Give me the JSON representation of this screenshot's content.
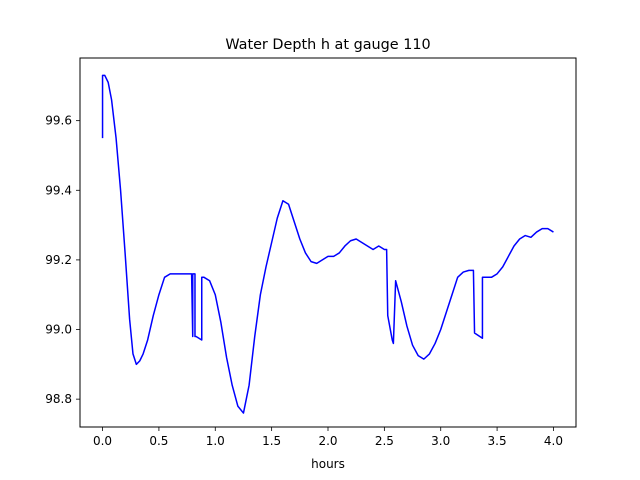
{
  "chart_data": {
    "type": "line",
    "title": "Water Depth h at gauge 110",
    "xlabel": "hours",
    "ylabel": "",
    "xlim": [
      -0.2,
      4.2
    ],
    "ylim": [
      98.72,
      99.78
    ],
    "xticks": [
      0.0,
      0.5,
      1.0,
      1.5,
      2.0,
      2.5,
      3.0,
      3.5,
      4.0
    ],
    "xtick_labels": [
      "0.0",
      "0.5",
      "1.0",
      "1.5",
      "2.0",
      "2.5",
      "3.0",
      "3.5",
      "4.0"
    ],
    "yticks": [
      98.8,
      99.0,
      99.2,
      99.4,
      99.6
    ],
    "ytick_labels": [
      "98.8",
      "99.0",
      "99.2",
      "99.4",
      "99.6"
    ],
    "grid": false,
    "series": [
      {
        "color": "#0000ff",
        "x": [
          0.0,
          0.0,
          0.02,
          0.05,
          0.08,
          0.12,
          0.16,
          0.2,
          0.24,
          0.27,
          0.3,
          0.33,
          0.36,
          0.4,
          0.45,
          0.5,
          0.55,
          0.6,
          0.65,
          0.7,
          0.75,
          0.79,
          0.8,
          0.8,
          0.82,
          0.82,
          0.83,
          0.88,
          0.88,
          0.9,
          0.95,
          1.0,
          1.05,
          1.1,
          1.15,
          1.2,
          1.25,
          1.3,
          1.35,
          1.4,
          1.45,
          1.5,
          1.55,
          1.6,
          1.65,
          1.7,
          1.75,
          1.8,
          1.85,
          1.9,
          1.95,
          2.0,
          2.05,
          2.1,
          2.15,
          2.2,
          2.25,
          2.3,
          2.35,
          2.4,
          2.45,
          2.5,
          2.52,
          2.53,
          2.57,
          2.58,
          2.6,
          2.65,
          2.7,
          2.75,
          2.8,
          2.85,
          2.9,
          2.95,
          3.0,
          3.05,
          3.1,
          3.15,
          3.2,
          3.25,
          3.29,
          3.3,
          3.37,
          3.37,
          3.4,
          3.45,
          3.5,
          3.55,
          3.6,
          3.65,
          3.7,
          3.75,
          3.8,
          3.85,
          3.9,
          3.95,
          4.0
        ],
        "y": [
          99.55,
          99.73,
          99.73,
          99.71,
          99.66,
          99.55,
          99.4,
          99.22,
          99.03,
          98.93,
          98.9,
          98.91,
          98.93,
          98.97,
          99.04,
          99.1,
          99.15,
          99.16,
          99.16,
          99.16,
          99.16,
          99.16,
          98.98,
          99.16,
          99.16,
          98.98,
          98.98,
          98.97,
          99.15,
          99.15,
          99.14,
          99.1,
          99.02,
          98.92,
          98.84,
          98.78,
          98.76,
          98.84,
          98.98,
          99.1,
          99.18,
          99.25,
          99.32,
          99.37,
          99.36,
          99.31,
          99.26,
          99.22,
          99.195,
          99.19,
          99.2,
          99.21,
          99.21,
          99.22,
          99.24,
          99.255,
          99.26,
          99.25,
          99.24,
          99.23,
          99.24,
          99.23,
          99.23,
          99.04,
          98.97,
          98.96,
          99.14,
          99.08,
          99.01,
          98.955,
          98.925,
          98.915,
          98.93,
          98.96,
          99.0,
          99.05,
          99.1,
          99.15,
          99.165,
          99.17,
          99.17,
          98.99,
          98.975,
          99.15,
          99.15,
          99.15,
          99.16,
          99.18,
          99.21,
          99.24,
          99.26,
          99.27,
          99.265,
          99.28,
          99.29,
          99.29,
          99.28
        ]
      }
    ]
  }
}
